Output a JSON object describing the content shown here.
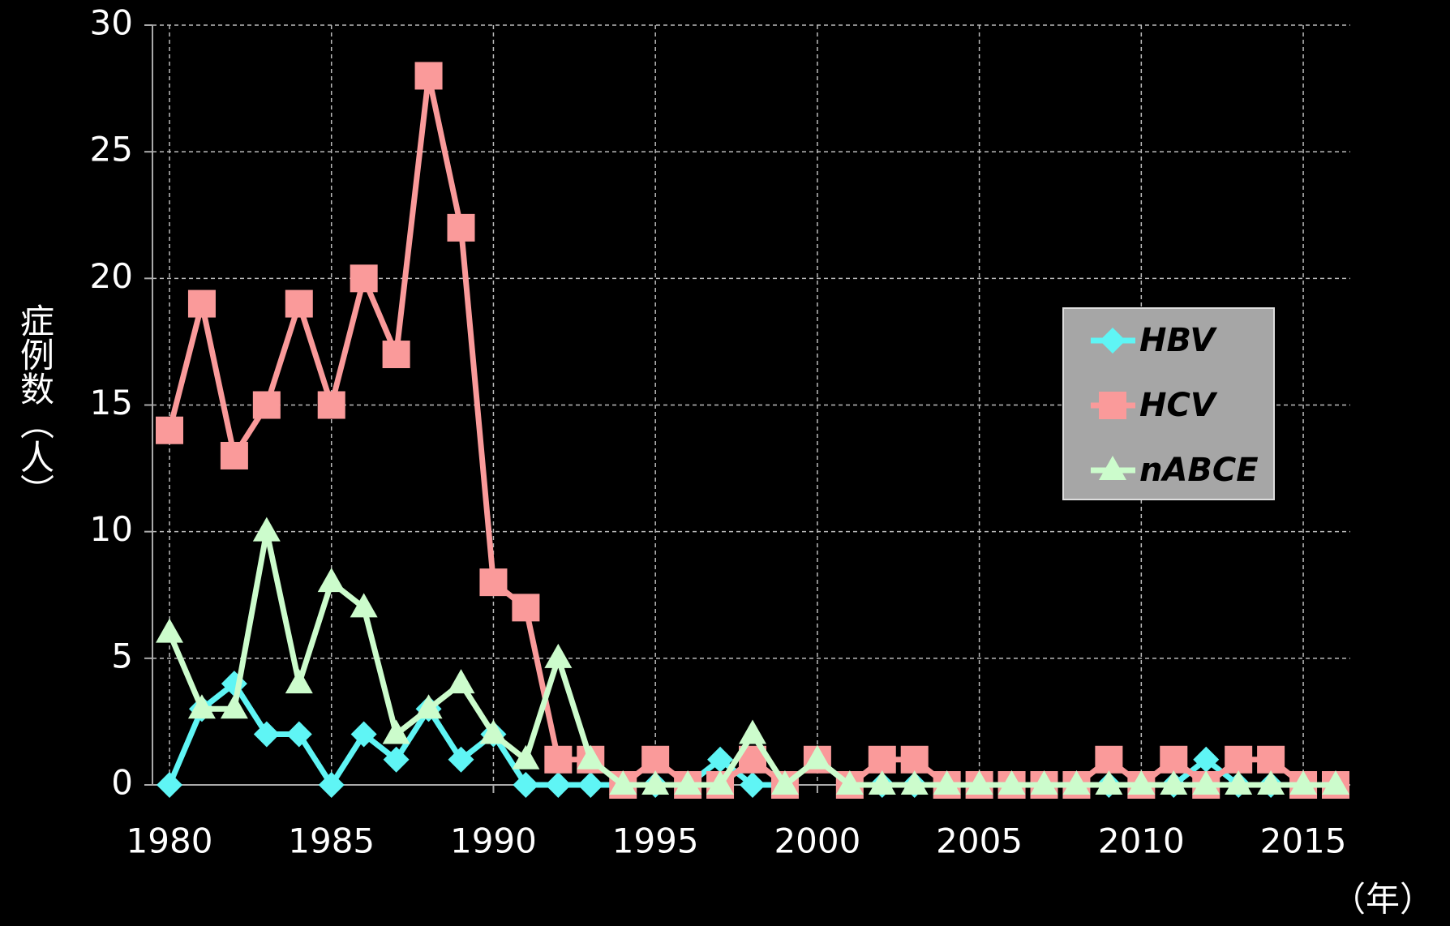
{
  "chart_data": {
    "type": "line",
    "y_label": "症例数（人）",
    "x_label": "（年）",
    "x": [
      1980,
      1981,
      1982,
      1983,
      1984,
      1985,
      1986,
      1987,
      1988,
      1989,
      1990,
      1991,
      1992,
      1993,
      1994,
      1995,
      1996,
      1997,
      1998,
      1999,
      2000,
      2001,
      2002,
      2003,
      2004,
      2005,
      2006,
      2007,
      2008,
      2009,
      2010,
      2011,
      2012,
      2013,
      2014,
      2015,
      2016
    ],
    "series": [
      {
        "name": "HBV",
        "color": "#5ff5f5",
        "marker": "diamond",
        "values": [
          0,
          3,
          4,
          2,
          2,
          0,
          2,
          1,
          3,
          1,
          2,
          0,
          0,
          0,
          0,
          0,
          0,
          1,
          0,
          0,
          1,
          0,
          0,
          0,
          0,
          0,
          0,
          0,
          0,
          0,
          0,
          0,
          1,
          0,
          0,
          0,
          0
        ]
      },
      {
        "name": "HCV",
        "color": "#fa9a9a",
        "marker": "square",
        "values": [
          14,
          19,
          13,
          15,
          19,
          15,
          20,
          17,
          28,
          22,
          8,
          7,
          1,
          1,
          0,
          1,
          0,
          0,
          1,
          0,
          1,
          0,
          1,
          1,
          0,
          0,
          0,
          0,
          0,
          1,
          0,
          1,
          0,
          1,
          1,
          0,
          0
        ]
      },
      {
        "name": "nABCE",
        "color": "#ccfccc",
        "marker": "triangle",
        "values": [
          6,
          3,
          3,
          10,
          4,
          8,
          7,
          2,
          3,
          4,
          2,
          1,
          5,
          1,
          0,
          0,
          0,
          0,
          2,
          0,
          1,
          0,
          0,
          0,
          0,
          0,
          0,
          0,
          0,
          0,
          0,
          0,
          0,
          0,
          0,
          0,
          0
        ]
      }
    ],
    "xlim": [
      1980,
      2016
    ],
    "xticks": [
      1980,
      1985,
      1990,
      1995,
      2000,
      2005,
      2010,
      2015
    ],
    "ylim": [
      0,
      30
    ],
    "yticks": [
      0,
      5,
      10,
      15,
      20,
      25,
      30
    ],
    "grid": true
  }
}
